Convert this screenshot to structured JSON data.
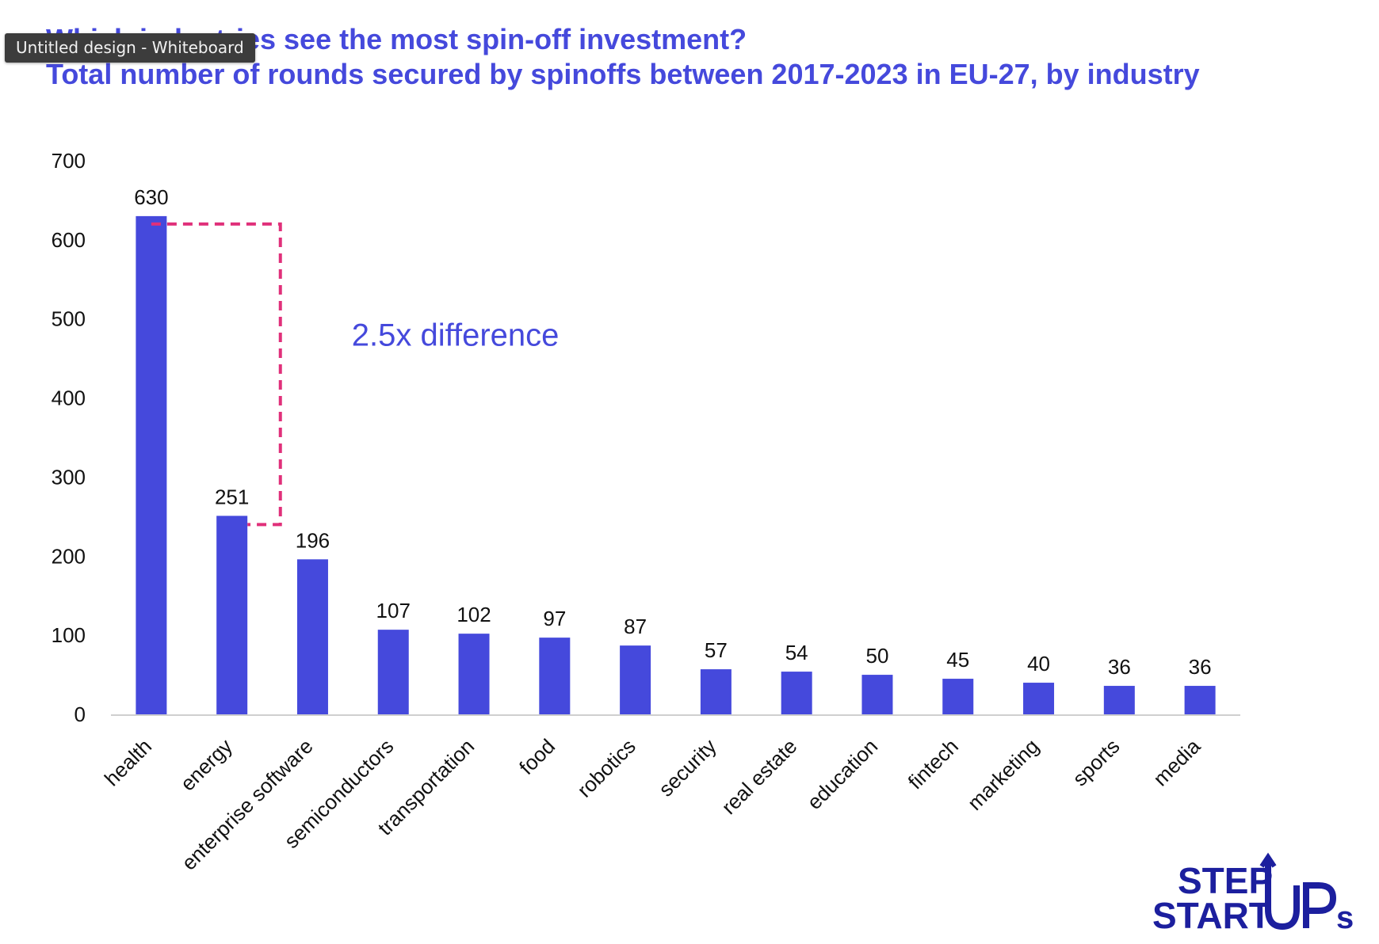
{
  "window": {
    "tooltip": "Untitled design - Whiteboard"
  },
  "colors": {
    "bar": "#4549dc",
    "title": "#4549dc",
    "annotation_text": "#4549dc",
    "annotation_bracket": "#e0307a",
    "logo": "#1c1f9e"
  },
  "chart_data": {
    "type": "bar",
    "title": "Which industries see the most spin-off investment?",
    "subtitle": "Total number of rounds secured by spinoffs between 2017-2023 in EU-27, by industry",
    "categories": [
      "health",
      "energy",
      "enterprise software",
      "semiconductors",
      "transportation",
      "food",
      "robotics",
      "security",
      "real estate",
      "education",
      "fintech",
      "marketing",
      "sports",
      "media"
    ],
    "values": [
      630,
      251,
      196,
      107,
      102,
      97,
      87,
      57,
      54,
      50,
      45,
      40,
      36,
      36
    ],
    "data_labels": [
      "630",
      "251",
      "196",
      "107",
      "102",
      "97",
      "87",
      "57",
      "54",
      "50",
      "45",
      "40",
      "36",
      "36"
    ],
    "ylim": [
      0,
      700
    ],
    "yticks": [
      0,
      100,
      200,
      300,
      400,
      500,
      600,
      700
    ],
    "ytick_labels": [
      "0",
      "100",
      "200",
      "300",
      "400",
      "500",
      "600",
      "700"
    ],
    "xlabel": "",
    "ylabel": "",
    "grid": false,
    "annotation": {
      "text": "2.5x difference",
      "from_value": 630,
      "to_value": 251
    }
  },
  "logo": {
    "line1": "STEP",
    "line2": "START",
    "suffix": "UPs"
  }
}
